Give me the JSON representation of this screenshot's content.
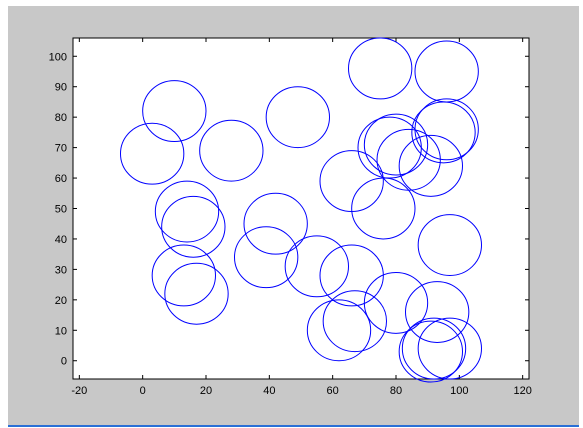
{
  "window": {
    "background": "#c8c8c8",
    "accent_line": "#2a6fd6"
  },
  "chart_data": {
    "type": "scatter",
    "marker": "circle-outline",
    "title": "",
    "xlabel": "",
    "ylabel": "",
    "xlim": [
      -22,
      122
    ],
    "ylim": [
      -6,
      106
    ],
    "grid": false,
    "legend": "none",
    "line_color": "#0000ff",
    "circle_radius": 10,
    "x_ticks": [
      -20,
      0,
      20,
      40,
      60,
      80,
      100,
      120
    ],
    "y_ticks": [
      0,
      10,
      20,
      30,
      40,
      50,
      60,
      70,
      80,
      90,
      100
    ],
    "x_tick_labels": [
      "-20",
      "0",
      "20",
      "40",
      "60",
      "80",
      "100",
      "120"
    ],
    "y_tick_labels": [
      "0",
      "10",
      "20",
      "30",
      "40",
      "50",
      "60",
      "70",
      "80",
      "90",
      "100"
    ],
    "series": [
      {
        "points": [
          {
            "x": 75,
            "y": 96
          },
          {
            "x": 96,
            "y": 95
          },
          {
            "x": 10,
            "y": 82
          },
          {
            "x": 49,
            "y": 80
          },
          {
            "x": 96,
            "y": 76
          },
          {
            "x": 95,
            "y": 75
          },
          {
            "x": 3,
            "y": 68
          },
          {
            "x": 28,
            "y": 69
          },
          {
            "x": 80,
            "y": 71
          },
          {
            "x": 78,
            "y": 70
          },
          {
            "x": 84,
            "y": 66
          },
          {
            "x": 91,
            "y": 64
          },
          {
            "x": 66,
            "y": 59
          },
          {
            "x": 76,
            "y": 50
          },
          {
            "x": 14,
            "y": 49
          },
          {
            "x": 16,
            "y": 44
          },
          {
            "x": 42,
            "y": 45
          },
          {
            "x": 39,
            "y": 34
          },
          {
            "x": 55,
            "y": 31
          },
          {
            "x": 97,
            "y": 38
          },
          {
            "x": 66,
            "y": 28
          },
          {
            "x": 13,
            "y": 28
          },
          {
            "x": 17,
            "y": 22
          },
          {
            "x": 80,
            "y": 19
          },
          {
            "x": 93,
            "y": 16
          },
          {
            "x": 67,
            "y": 13
          },
          {
            "x": 62,
            "y": 10
          },
          {
            "x": 92,
            "y": 4
          },
          {
            "x": 91,
            "y": 3
          },
          {
            "x": 97,
            "y": 4
          }
        ]
      }
    ]
  }
}
